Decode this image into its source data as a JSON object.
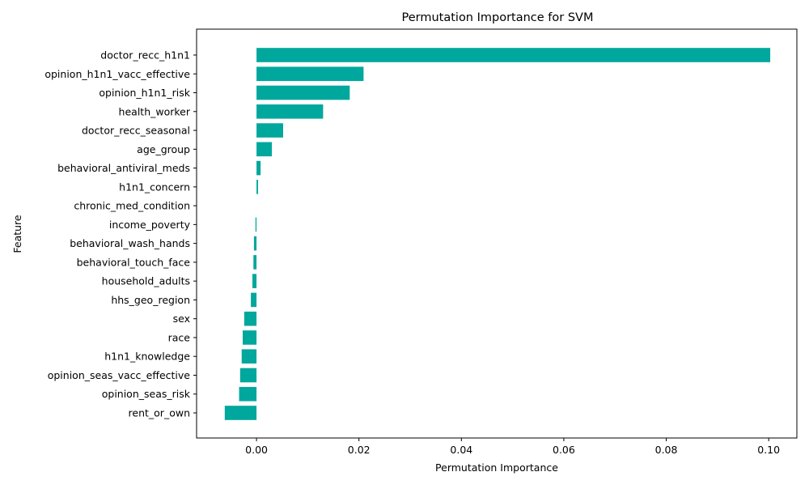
{
  "chart_data": {
    "type": "bar",
    "orientation": "horizontal",
    "title": "Permutation Importance for SVM",
    "xlabel": "Permutation Importance",
    "ylabel": "Feature",
    "xlim": [
      -0.0117,
      0.1055
    ],
    "x_ticks": [
      0.0,
      0.02,
      0.04,
      0.06,
      0.08,
      0.1
    ],
    "x_tick_labels": [
      "0.00",
      "0.02",
      "0.04",
      "0.06",
      "0.08",
      "0.10"
    ],
    "grid": false,
    "bar_color": "#00A79D",
    "categories": [
      "doctor_recc_h1n1",
      "opinion_h1n1_vacc_effective",
      "opinion_h1n1_risk",
      "health_worker",
      "doctor_recc_seasonal",
      "age_group",
      "behavioral_antiviral_meds",
      "h1n1_concern",
      "chronic_med_condition",
      "income_poverty",
      "behavioral_wash_hands",
      "behavioral_touch_face",
      "household_adults",
      "hhs_geo_region",
      "sex",
      "race",
      "h1n1_knowledge",
      "opinion_seas_vacc_effective",
      "opinion_seas_risk",
      "rent_or_own"
    ],
    "values": [
      0.1003,
      0.0209,
      0.0182,
      0.013,
      0.0052,
      0.003,
      0.0008,
      0.0003,
      0.0,
      -0.0002,
      -0.0005,
      -0.0006,
      -0.0008,
      -0.0011,
      -0.0024,
      -0.0027,
      -0.0029,
      -0.0032,
      -0.0034,
      -0.0062
    ]
  }
}
